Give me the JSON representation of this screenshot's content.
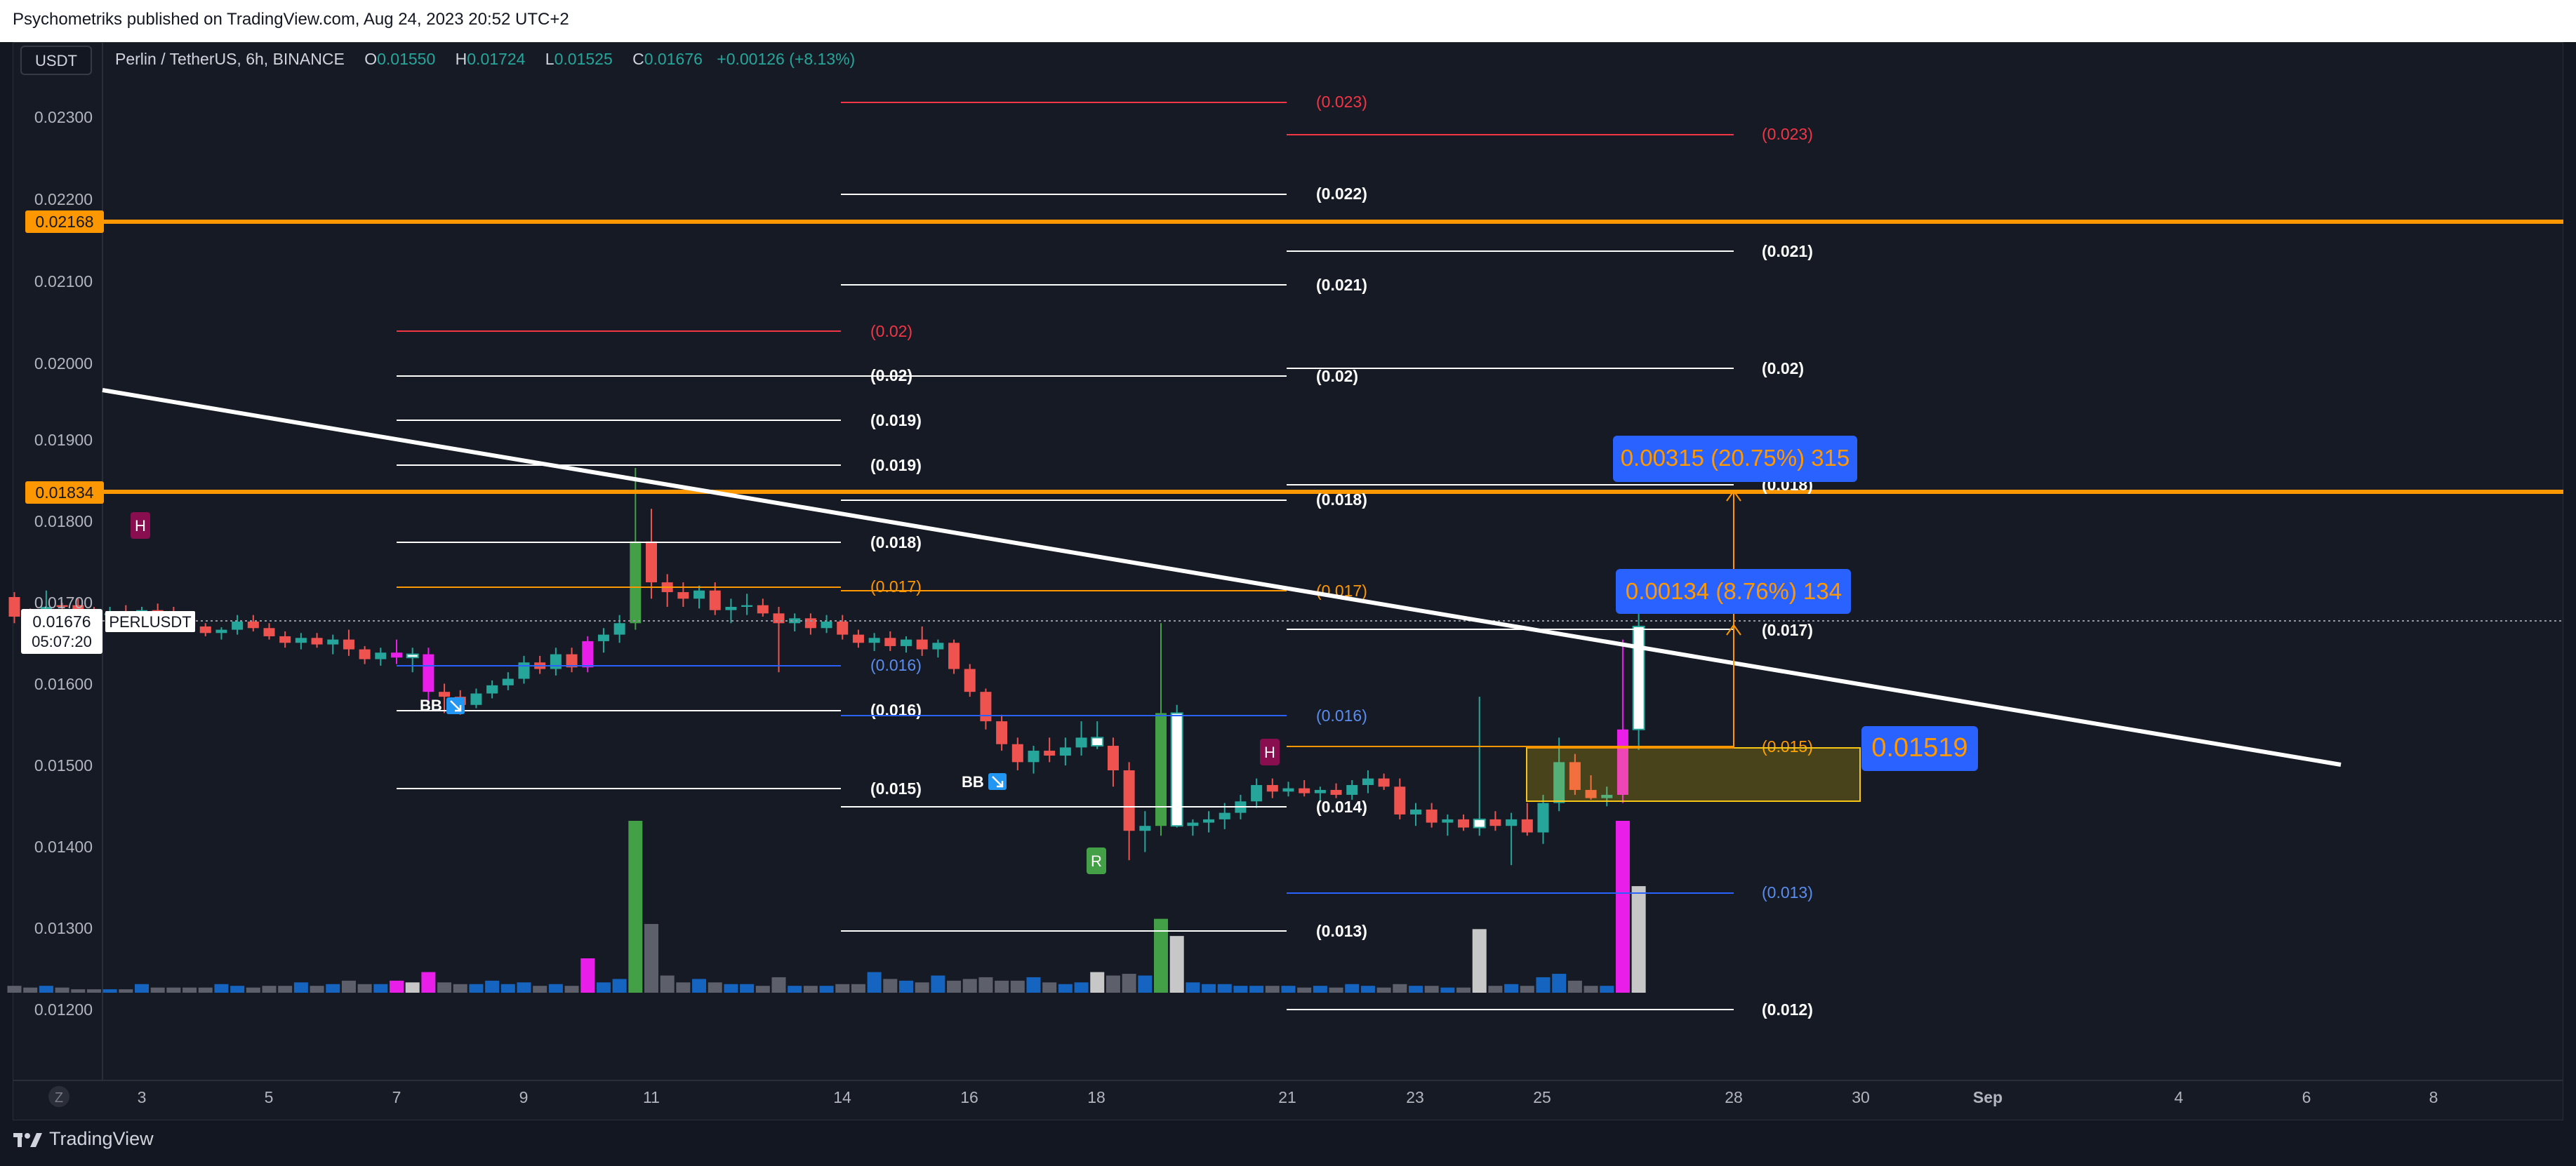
{
  "header": {
    "published": "Psychometriks published on TradingView.com, Aug 24, 2023 20:52 UTC+2"
  },
  "symbol_bar": {
    "currency": "USDT",
    "title": "Perlin / TetherUS, 6h, BINANCE",
    "o_label": "O",
    "o_value": "0.01550",
    "h_label": "H",
    "h_value": "0.01724",
    "l_label": "L",
    "l_value": "0.01525",
    "c_label": "C",
    "c_value": "0.01676",
    "change": "+0.00126 (+8.13%)"
  },
  "price_axis": {
    "ticks": [
      "0.02300",
      "0.02200",
      "0.02100",
      "0.02000",
      "0.01900",
      "0.01800",
      "0.01700",
      "0.01600",
      "0.01500",
      "0.01400",
      "0.01300",
      "0.01200"
    ],
    "hline_labels": [
      "0.02168",
      "0.01834"
    ],
    "last_price": "0.01676",
    "countdown": "05:07:20",
    "ticker": "PERLUSDT"
  },
  "time_axis": {
    "labels": [
      "3",
      "5",
      "7",
      "9",
      "11",
      "14",
      "16",
      "18",
      "21",
      "23",
      "25",
      "28",
      "30",
      "Sep",
      "4",
      "6",
      "8"
    ],
    "z_button": "Z"
  },
  "fib_labels": {
    "f1": [
      "(0.02)",
      "(0.02)",
      "(0.019)",
      "(0.019)",
      "(0.018)",
      "(0.017)",
      "(0.016)",
      "(0.016)",
      "(0.015)"
    ],
    "f2": [
      "(0.023)",
      "(0.022)",
      "(0.021)",
      "(0.02)",
      "(0.018)",
      "(0.017)",
      "(0.016)",
      "(0.014)",
      "(0.013)"
    ],
    "f3": [
      "(0.023)",
      "(0.021)",
      "(0.02)",
      "(0.018)",
      "(0.017)",
      "(0.015)",
      "(0.013)",
      "(0.012)"
    ]
  },
  "markers": {
    "h1": "H",
    "h2": "H",
    "r": "R",
    "bb1": "BB",
    "bb2": "BB"
  },
  "measure": {
    "top": "0.00315 (20.75%) 315",
    "mid": "0.00134 (8.76%) 134",
    "price": "0.01519"
  },
  "footer": {
    "brand": "TradingView"
  },
  "colors": {
    "bull": "#26a69a",
    "bear": "#ef5350",
    "magenta": "#e91ee9",
    "white": "#ffffff",
    "orange": "#ff9800",
    "blue": "#2962ff",
    "green": "#43a047"
  },
  "chart_data": {
    "type": "candlestick",
    "timeframe": "6h",
    "symbol": "PERLUSDT",
    "yrange": [
      0.0118,
      0.0236
    ],
    "horizontal_levels": [
      0.02168,
      0.01834
    ],
    "last": 0.01676,
    "candles": [
      [
        1.0,
        0.01712,
        0.01718,
        0.0168,
        0.01688,
        "bear",
        0.04
      ],
      [
        1.25,
        0.01688,
        0.01698,
        0.0168,
        0.0169,
        "bear",
        0.03
      ],
      [
        1.5,
        0.0169,
        0.0172,
        0.01682,
        0.017,
        "bull",
        0.04
      ],
      [
        1.75,
        0.017,
        0.01705,
        0.0169,
        0.01702,
        "bear",
        0.03
      ],
      [
        2.0,
        0.01702,
        0.0171,
        0.01692,
        0.01695,
        "bear",
        0.02
      ],
      [
        2.25,
        0.01695,
        0.017,
        0.01688,
        0.0169,
        "bear",
        0.02
      ],
      [
        2.5,
        0.0169,
        0.017,
        0.01685,
        0.01692,
        "bull",
        0.02
      ],
      [
        2.75,
        0.01692,
        0.01702,
        0.0168,
        0.01684,
        "bear",
        0.02
      ],
      [
        3.0,
        0.01684,
        0.017,
        0.01678,
        0.01696,
        "bull",
        0.05
      ],
      [
        3.25,
        0.01696,
        0.01704,
        0.0169,
        0.01694,
        "bear",
        0.03
      ],
      [
        3.5,
        0.01694,
        0.017,
        0.01682,
        0.01686,
        "bear",
        0.03
      ],
      [
        3.75,
        0.01686,
        0.0169,
        0.0167,
        0.01676,
        "bear",
        0.03
      ],
      [
        4.0,
        0.01676,
        0.0168,
        0.01664,
        0.01668,
        "bear",
        0.03
      ],
      [
        4.25,
        0.01668,
        0.01675,
        0.0166,
        0.01672,
        "bull",
        0.05
      ],
      [
        4.5,
        0.01672,
        0.0169,
        0.01666,
        0.01682,
        "bull",
        0.04
      ],
      [
        4.75,
        0.01682,
        0.0169,
        0.0167,
        0.01674,
        "bear",
        0.03
      ],
      [
        5.0,
        0.01674,
        0.0168,
        0.0166,
        0.01664,
        "bear",
        0.04
      ],
      [
        5.25,
        0.01664,
        0.0167,
        0.0165,
        0.01656,
        "bear",
        0.04
      ],
      [
        5.5,
        0.01656,
        0.01668,
        0.01648,
        0.01662,
        "bull",
        0.06
      ],
      [
        5.75,
        0.01662,
        0.01668,
        0.0165,
        0.01654,
        "bear",
        0.04
      ],
      [
        6.0,
        0.01654,
        0.01666,
        0.01642,
        0.0166,
        "bull",
        0.05
      ],
      [
        6.25,
        0.0166,
        0.01672,
        0.0164,
        0.01648,
        "bear",
        0.07
      ],
      [
        6.5,
        0.01648,
        0.01652,
        0.0163,
        0.01636,
        "bear",
        0.05
      ],
      [
        6.75,
        0.01636,
        0.0165,
        0.01628,
        0.01644,
        "bull",
        0.05
      ],
      [
        7.0,
        0.01644,
        0.0166,
        0.0163,
        0.01638,
        "magenta",
        0.07
      ],
      [
        7.25,
        0.01638,
        0.0165,
        0.0162,
        0.01642,
        "white",
        0.06
      ],
      [
        7.5,
        0.01642,
        0.0165,
        0.0158,
        0.01596,
        "magenta",
        0.12
      ],
      [
        7.75,
        0.01596,
        0.01606,
        0.0157,
        0.0159,
        "bear",
        0.06
      ],
      [
        8.0,
        0.0159,
        0.01598,
        0.01568,
        0.0158,
        "bear",
        0.05
      ],
      [
        8.25,
        0.0158,
        0.016,
        0.01576,
        0.01594,
        "bull",
        0.05
      ],
      [
        8.5,
        0.01594,
        0.0161,
        0.01588,
        0.01604,
        "bull",
        0.07
      ],
      [
        8.75,
        0.01604,
        0.0162,
        0.01598,
        0.01612,
        "bull",
        0.05
      ],
      [
        9.0,
        0.01612,
        0.0164,
        0.01606,
        0.01632,
        "bull",
        0.06
      ],
      [
        9.25,
        0.01632,
        0.0164,
        0.01618,
        0.01624,
        "bear",
        0.04
      ],
      [
        9.5,
        0.01624,
        0.0165,
        0.01616,
        0.01642,
        "bull",
        0.05
      ],
      [
        9.75,
        0.01642,
        0.0165,
        0.0162,
        0.01626,
        "bear",
        0.04
      ],
      [
        10.0,
        0.01626,
        0.01664,
        0.0162,
        0.01658,
        "magenta",
        0.2
      ],
      [
        10.25,
        0.01658,
        0.01674,
        0.01644,
        0.01666,
        "bull",
        0.06
      ],
      [
        10.5,
        0.01666,
        0.0169,
        0.01656,
        0.0168,
        "bull",
        0.08
      ],
      [
        10.75,
        0.0168,
        0.0187,
        0.01672,
        0.0178,
        "green",
        1.0
      ],
      [
        11.0,
        0.0178,
        0.0182,
        0.0171,
        0.0173,
        "bear",
        0.4
      ],
      [
        11.25,
        0.0173,
        0.0174,
        0.017,
        0.01718,
        "bear",
        0.1
      ],
      [
        11.5,
        0.01718,
        0.0173,
        0.017,
        0.0171,
        "bear",
        0.06
      ],
      [
        11.75,
        0.0171,
        0.01726,
        0.01698,
        0.0172,
        "bull",
        0.08
      ],
      [
        12.0,
        0.0172,
        0.0173,
        0.0169,
        0.01696,
        "bear",
        0.06
      ],
      [
        12.25,
        0.01696,
        0.0171,
        0.0168,
        0.017,
        "bull",
        0.05
      ],
      [
        12.5,
        0.017,
        0.01716,
        0.0169,
        0.01702,
        "bull",
        0.05
      ],
      [
        12.75,
        0.01702,
        0.0171,
        0.01688,
        0.01692,
        "bear",
        0.04
      ],
      [
        13.0,
        0.01692,
        0.017,
        0.0162,
        0.0168,
        "bear",
        0.09
      ],
      [
        13.25,
        0.0168,
        0.01692,
        0.0167,
        0.01686,
        "bull",
        0.04
      ],
      [
        13.5,
        0.01686,
        0.01692,
        0.01666,
        0.01674,
        "bear",
        0.04
      ],
      [
        13.75,
        0.01674,
        0.0169,
        0.01668,
        0.01682,
        "bull",
        0.04
      ],
      [
        14.0,
        0.01682,
        0.0169,
        0.0166,
        0.01666,
        "bear",
        0.05
      ],
      [
        14.25,
        0.01666,
        0.01672,
        0.0165,
        0.01656,
        "bear",
        0.05
      ],
      [
        14.5,
        0.01656,
        0.01668,
        0.01646,
        0.01662,
        "bull",
        0.12
      ],
      [
        14.75,
        0.01662,
        0.0167,
        0.01646,
        0.01652,
        "bear",
        0.08
      ],
      [
        15.0,
        0.01652,
        0.01664,
        0.01644,
        0.0166,
        "bull",
        0.07
      ],
      [
        15.25,
        0.0166,
        0.01676,
        0.0164,
        0.01648,
        "bear",
        0.06
      ],
      [
        15.5,
        0.01648,
        0.0166,
        0.01638,
        0.01656,
        "bull",
        0.1
      ],
      [
        15.75,
        0.01656,
        0.0166,
        0.01618,
        0.01624,
        "bear",
        0.07
      ],
      [
        16.0,
        0.01624,
        0.0163,
        0.0159,
        0.01596,
        "bear",
        0.08
      ],
      [
        16.25,
        0.01596,
        0.016,
        0.0155,
        0.0156,
        "bear",
        0.09
      ],
      [
        16.5,
        0.0156,
        0.01568,
        0.01524,
        0.01532,
        "bear",
        0.07
      ],
      [
        16.75,
        0.01532,
        0.0154,
        0.015,
        0.0151,
        "bear",
        0.07
      ],
      [
        17.0,
        0.0151,
        0.0153,
        0.01496,
        0.01524,
        "bull",
        0.09
      ],
      [
        17.25,
        0.01524,
        0.0154,
        0.0151,
        0.01518,
        "bear",
        0.06
      ],
      [
        17.5,
        0.01518,
        0.0154,
        0.01506,
        0.01528,
        "bull",
        0.05
      ],
      [
        17.75,
        0.01528,
        0.0156,
        0.01518,
        0.0154,
        "bull",
        0.06
      ],
      [
        18.0,
        0.0154,
        0.0156,
        0.01526,
        0.0153,
        "white",
        0.12
      ],
      [
        18.25,
        0.0153,
        0.0154,
        0.0148,
        0.015,
        "bear",
        0.1
      ],
      [
        18.5,
        0.015,
        0.0151,
        0.0139,
        0.01426,
        "bear",
        0.11
      ],
      [
        18.75,
        0.01426,
        0.0145,
        0.014,
        0.01432,
        "bull",
        0.1
      ],
      [
        19.0,
        0.01432,
        0.0168,
        0.0142,
        0.0157,
        "green",
        0.43
      ],
      [
        19.25,
        0.0157,
        0.0158,
        0.0143,
        0.01432,
        "white",
        0.33
      ],
      [
        19.5,
        0.01432,
        0.0144,
        0.0142,
        0.01436,
        "bull",
        0.06
      ],
      [
        19.75,
        0.01436,
        0.0145,
        0.01424,
        0.0144,
        "bull",
        0.05
      ],
      [
        20.0,
        0.0144,
        0.0146,
        0.01428,
        0.01448,
        "bull",
        0.05
      ],
      [
        20.25,
        0.01448,
        0.0147,
        0.0144,
        0.01462,
        "bull",
        0.04
      ],
      [
        20.5,
        0.01462,
        0.0149,
        0.01454,
        0.01482,
        "bull",
        0.04
      ],
      [
        20.75,
        0.01482,
        0.0149,
        0.01466,
        0.01474,
        "bear",
        0.04
      ],
      [
        21.0,
        0.01474,
        0.01486,
        0.01468,
        0.01478,
        "bull",
        0.04
      ],
      [
        21.25,
        0.01478,
        0.01488,
        0.01468,
        0.01472,
        "bear",
        0.03
      ],
      [
        21.5,
        0.01472,
        0.0148,
        0.01462,
        0.01476,
        "bull",
        0.04
      ],
      [
        21.75,
        0.01476,
        0.01484,
        0.01466,
        0.0147,
        "bear",
        0.03
      ],
      [
        22.0,
        0.0147,
        0.01488,
        0.01464,
        0.01482,
        "bull",
        0.05
      ],
      [
        22.25,
        0.01482,
        0.015,
        0.01472,
        0.0149,
        "bull",
        0.04
      ],
      [
        22.5,
        0.0149,
        0.01496,
        0.01476,
        0.0148,
        "bear",
        0.03
      ],
      [
        22.75,
        0.0148,
        0.0149,
        0.0144,
        0.01446,
        "bear",
        0.05
      ],
      [
        23.0,
        0.01446,
        0.0146,
        0.01432,
        0.01452,
        "bull",
        0.04
      ],
      [
        23.25,
        0.01452,
        0.0146,
        0.0143,
        0.01436,
        "bear",
        0.04
      ],
      [
        23.5,
        0.01436,
        0.01446,
        0.0142,
        0.0144,
        "bull",
        0.03
      ],
      [
        23.75,
        0.0144,
        0.01446,
        0.01426,
        0.0143,
        "bear",
        0.03
      ],
      [
        24.0,
        0.0143,
        0.0159,
        0.0142,
        0.0144,
        "white",
        0.37
      ],
      [
        24.25,
        0.0144,
        0.0145,
        0.01426,
        0.01432,
        "bear",
        0.04
      ],
      [
        24.5,
        0.01432,
        0.01448,
        0.01384,
        0.0144,
        "bull",
        0.05
      ],
      [
        24.75,
        0.0144,
        0.0146,
        0.0142,
        0.01424,
        "bear",
        0.04
      ],
      [
        25.0,
        0.01424,
        0.0147,
        0.0141,
        0.0146,
        "bull",
        0.09
      ],
      [
        25.25,
        0.0146,
        0.0154,
        0.0145,
        0.0151,
        "bull",
        0.11
      ],
      [
        25.5,
        0.0151,
        0.0152,
        0.0147,
        0.01476,
        "bear",
        0.07
      ],
      [
        25.75,
        0.01476,
        0.01494,
        0.01464,
        0.01466,
        "bear",
        0.04
      ],
      [
        26.0,
        0.01466,
        0.0148,
        0.01456,
        0.0147,
        "bull",
        0.04
      ],
      [
        26.25,
        0.0147,
        0.0166,
        0.0146,
        0.0155,
        "magenta",
        1.0
      ],
      [
        26.5,
        0.0155,
        0.01724,
        0.01525,
        0.01676,
        "white",
        0.62
      ]
    ]
  }
}
